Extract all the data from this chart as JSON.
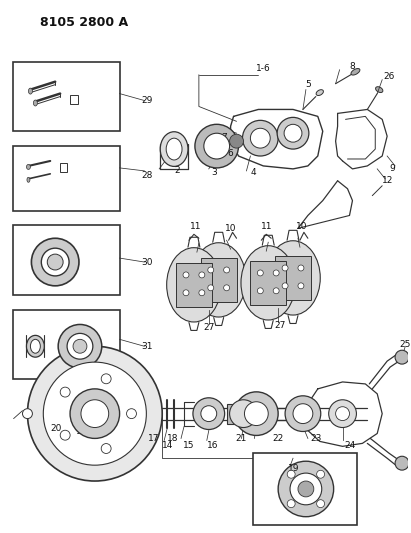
{
  "title": "8105 2800 A",
  "bg_color": "#ffffff",
  "lc": "#333333",
  "tc": "#111111",
  "fig_width": 4.11,
  "fig_height": 5.33,
  "dpi": 100
}
